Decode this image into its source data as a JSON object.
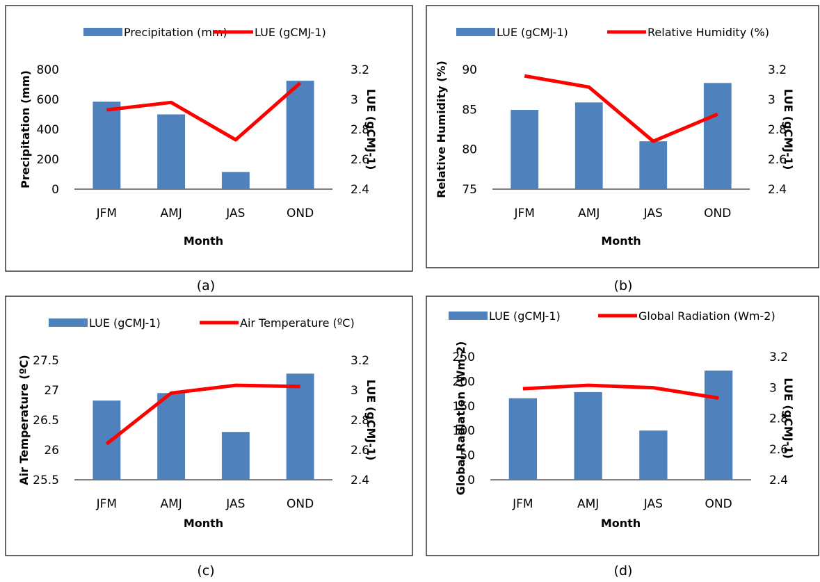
{
  "colors": {
    "bar": "#4f81bd",
    "line": "#ff0000",
    "frame": "#000000"
  },
  "chart_data": [
    {
      "type": "bar",
      "caption": "(a)",
      "categories": [
        "JFM",
        "AMJ",
        "JAS",
        "OND"
      ],
      "xlabel": "Month",
      "ylabel": "Precipitation (mm)",
      "y2label": "LUE (gCMJ-1)",
      "ylim": [
        0,
        800
      ],
      "yticks": [
        "0",
        "200",
        "400",
        "600",
        "800"
      ],
      "y2lim": [
        2.4,
        3.2
      ],
      "y2ticks": [
        "2.4",
        "2.6",
        "2.8",
        "3",
        "3.2"
      ],
      "series": [
        {
          "name": "Precipitation (mm)",
          "kind": "bar",
          "axis": "left",
          "values": [
            585,
            500,
            115,
            725
          ]
        },
        {
          "name": "LUE (gCMJ-1)",
          "kind": "line",
          "axis": "right",
          "values": [
            2.93,
            2.98,
            2.73,
            3.11
          ]
        }
      ],
      "legend": [
        "Precipitation (mm)",
        "LUE (gCMJ-1)"
      ],
      "grid": false,
      "legend_position": "top"
    },
    {
      "type": "bar",
      "caption": "(b)",
      "categories": [
        "JFM",
        "AMJ",
        "JAS",
        "OND"
      ],
      "xlabel": "Month",
      "ylabel": "Relative Humidity (%)",
      "y2label": "LUE (gCMJ-1)",
      "ylim": [
        75,
        90
      ],
      "yticks": [
        "75",
        "80",
        "85",
        "90"
      ],
      "y2lim": [
        2.4,
        3.2
      ],
      "y2ticks": [
        "2.4",
        "2.6",
        "2.8",
        "3",
        "3.2"
      ],
      "series": [
        {
          "name": "LUE (gCMJ-1)",
          "kind": "bar",
          "axis": "right",
          "values": [
            2.93,
            2.98,
            2.72,
            3.11
          ]
        },
        {
          "name": "Relative Humidity (%)",
          "kind": "line",
          "axis": "left",
          "values": [
            89.2,
            87.8,
            81.0,
            84.4
          ]
        }
      ],
      "legend": [
        "LUE (gCMJ-1)",
        "Relative Humidity (%)"
      ],
      "grid": false,
      "legend_position": "top"
    },
    {
      "type": "bar",
      "caption": "(c)",
      "categories": [
        "JFM",
        "AMJ",
        "JAS",
        "OND"
      ],
      "xlabel": "Month",
      "ylabel": "Air Temperature (ºC)",
      "y2label": "LUE (gCMJ-1)",
      "ylim": [
        25.5,
        27.5
      ],
      "yticks": [
        "25.5",
        "26",
        "26.5",
        "27",
        "27.5"
      ],
      "y2lim": [
        2.4,
        3.2
      ],
      "y2ticks": [
        "2.4",
        "2.6",
        "2.8",
        "3",
        "3.2"
      ],
      "series": [
        {
          "name": "LUE (gCMJ-1)",
          "kind": "bar",
          "axis": "right",
          "values": [
            2.93,
            2.98,
            2.72,
            3.11
          ]
        },
        {
          "name": "Air Temperature (ºC)",
          "kind": "line",
          "axis": "left",
          "values": [
            26.1,
            26.95,
            27.08,
            27.06
          ]
        }
      ],
      "legend": [
        "LUE (gCMJ-1)",
        "Air Temperature (ºC)"
      ],
      "grid": false,
      "legend_position": "top"
    },
    {
      "type": "bar",
      "caption": "(d)",
      "categories": [
        "JFM",
        "AMJ",
        "JAS",
        "OND"
      ],
      "xlabel": "Month",
      "ylabel": "Global Radiation (Wm-2)",
      "y2label": "LUE (gCMJ-1)",
      "ylim": [
        0,
        250
      ],
      "yticks": [
        "0",
        "50",
        "100",
        "150",
        "200",
        "250"
      ],
      "y2lim": [
        2.4,
        3.2
      ],
      "y2ticks": [
        "2.4",
        "2.6",
        "2.8",
        "3",
        "3.2"
      ],
      "series": [
        {
          "name": "LUE (gCMJ-1)",
          "kind": "bar",
          "axis": "right",
          "values": [
            2.93,
            2.97,
            2.72,
            3.11
          ]
        },
        {
          "name": "Global Radiation (Wm-2)",
          "kind": "line",
          "axis": "left",
          "values": [
            185,
            192,
            187,
            166
          ]
        }
      ],
      "legend": [
        "LUE (gCMJ-1)",
        "Global Radiation (Wm-2)"
      ],
      "grid": false,
      "legend_position": "top"
    }
  ]
}
